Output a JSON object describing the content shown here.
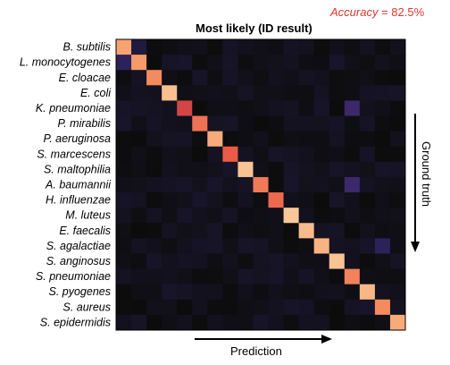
{
  "accuracy_label": "Accuracy",
  "accuracy_value": "= 82.5%",
  "chart_data": {
    "type": "heatmap",
    "title": "Most likely (ID result)",
    "xlabel": "Prediction",
    "ylabel": "Ground truth",
    "categories": [
      "B. subtilis",
      "L. monocytogenes",
      "E. cloacae",
      "E. coli",
      "K. pneumoniae",
      "P. mirabilis",
      "P. aeruginosa",
      "S. marcescens",
      "S. maltophilia",
      "A. baumannii",
      "H. influenzae",
      "M. luteus",
      "E. faecalis",
      "S. agalactiae",
      "S. anginosus",
      "S. pneumoniae",
      "S. pyogenes",
      "S. aureus",
      "S. epidermidis"
    ],
    "diagonal": [
      0.88,
      0.86,
      0.82,
      0.95,
      0.62,
      0.76,
      0.9,
      0.7,
      0.96,
      0.78,
      0.74,
      0.97,
      0.94,
      0.92,
      0.96,
      0.8,
      0.93,
      0.82,
      0.9
    ],
    "offdiag": [
      {
        "row": 0,
        "col": 1,
        "value": 0.1
      },
      {
        "row": 1,
        "col": 0,
        "value": 0.16
      },
      {
        "row": 4,
        "col": 15,
        "value": 0.22
      },
      {
        "row": 9,
        "col": 15,
        "value": 0.22
      },
      {
        "row": 13,
        "col": 17,
        "value": 0.16
      }
    ],
    "noise_max": 0.06
  }
}
